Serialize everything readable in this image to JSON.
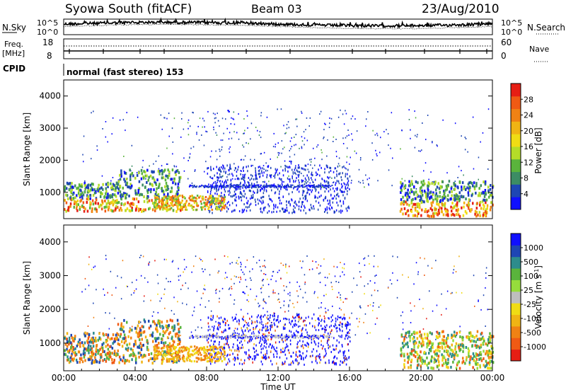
{
  "header": {
    "station": "Syowa South (fitACF)",
    "beam": "Beam 03",
    "date": "23/Aug/2010"
  },
  "noise_panel": {
    "left_label": "N.Sky",
    "right_label": "N.Search",
    "left_ticks": [
      "10^5",
      "10^0"
    ],
    "right_ticks": [
      "10^5",
      "10^0"
    ]
  },
  "freq_panel": {
    "left_label_1": "Freq.",
    "left_label_2": "[MHz]",
    "right_label": "Nave",
    "left_ticks": [
      "18",
      "8"
    ],
    "right_ticks": [
      "60",
      "0"
    ]
  },
  "cpid_panel": {
    "label": "CPID",
    "value": "normal (fast stereo) 153"
  },
  "colors": {
    "power": [
      "#1010ff",
      "#1e46b4",
      "#3c8c64",
      "#5ab43c",
      "#b4dc28",
      "#f0dc14",
      "#f0b414",
      "#f08214",
      "#f05a14",
      "#e61e14"
    ],
    "velocity": [
      "#e61e14",
      "#f05a14",
      "#f08214",
      "#f0b414",
      "#f0dc14",
      "#bebebe",
      "#96dc3c",
      "#5ab43c",
      "#2d8c8c",
      "#1e46b4",
      "#1010ff"
    ]
  },
  "chart_data": [
    {
      "type": "heatmap",
      "name": "power",
      "ylabel": "Slant Range [km]",
      "ylim": [
        180,
        4500
      ],
      "yticks": [
        1000,
        2000,
        3000,
        4000
      ],
      "colorbar": {
        "label": "Power [dB]",
        "ticks": [
          4,
          8,
          12,
          16,
          20,
          24,
          28
        ],
        "range": [
          0,
          30
        ]
      }
    },
    {
      "type": "heatmap",
      "name": "velocity",
      "xlabel": "Time UT",
      "xticks": [
        "00:00",
        "04:00",
        "08:00",
        "12:00",
        "16:00",
        "20:00",
        "00:00"
      ],
      "ylabel": "Slant Range [km]",
      "ylim": [
        180,
        4500
      ],
      "yticks": [
        1000,
        2000,
        3000,
        4000
      ],
      "colorbar": {
        "label": "Velocity [m s^-1]",
        "ticks": [
          "1000",
          "500",
          "100",
          "25",
          "-25",
          "-100",
          "-500",
          "-1000"
        ]
      }
    }
  ]
}
